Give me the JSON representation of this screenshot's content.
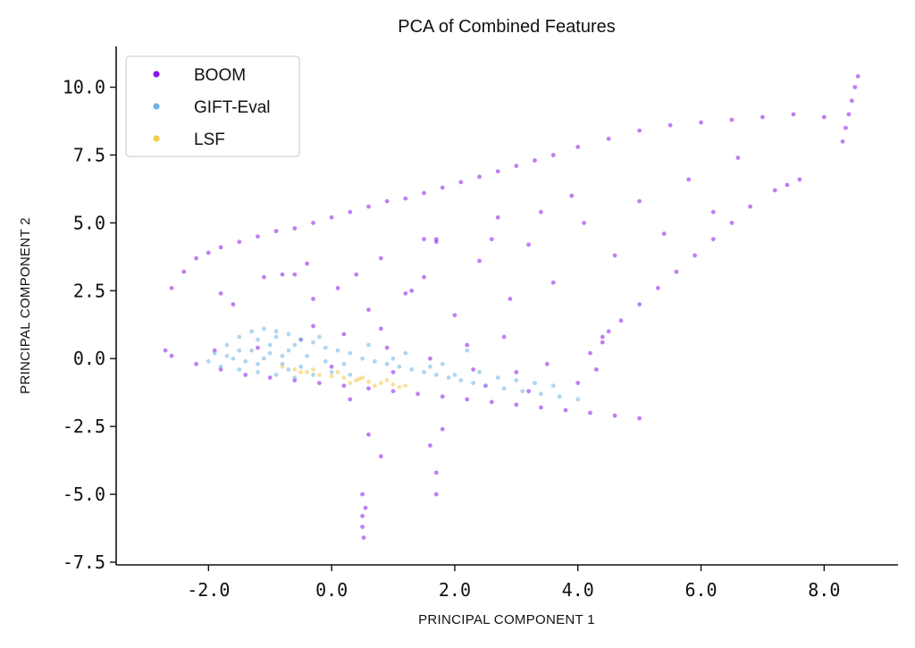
{
  "chart_data": {
    "type": "scatter",
    "title": "PCA of Combined Features",
    "xlabel": "PRINCIPAL COMPONENT 1",
    "ylabel": "PRINCIPAL COMPONENT 2",
    "xlim": [
      -3.5,
      9.2
    ],
    "ylim": [
      -7.6,
      11.5
    ],
    "xticks": [
      -2.0,
      0.0,
      2.0,
      4.0,
      6.0,
      8.0
    ],
    "xtick_labels": [
      "-2.0",
      "0.0",
      "2.0",
      "4.0",
      "6.0",
      "8.0"
    ],
    "yticks": [
      10.0,
      7.5,
      5.0,
      2.5,
      0.0,
      -2.5,
      -5.0,
      -7.5
    ],
    "ytick_labels": [
      "10.0",
      "7.5",
      "5.0",
      "2.5",
      "0.0",
      "-2.5",
      "-5.0",
      "-7.5"
    ],
    "grid": false,
    "legend_position": "top-left",
    "series": [
      {
        "name": "BOOM",
        "color": "#8a16e8",
        "points": [
          [
            -2.7,
            0.3
          ],
          [
            -2.6,
            2.6
          ],
          [
            -2.4,
            3.2
          ],
          [
            -2.2,
            3.7
          ],
          [
            -2.0,
            3.9
          ],
          [
            -1.8,
            4.1
          ],
          [
            -1.5,
            4.3
          ],
          [
            -1.2,
            4.5
          ],
          [
            -0.9,
            4.7
          ],
          [
            -0.6,
            4.8
          ],
          [
            -0.3,
            5.0
          ],
          [
            0.0,
            5.2
          ],
          [
            0.3,
            5.4
          ],
          [
            0.6,
            5.6
          ],
          [
            0.9,
            5.8
          ],
          [
            1.2,
            5.9
          ],
          [
            1.5,
            6.1
          ],
          [
            1.8,
            6.3
          ],
          [
            2.1,
            6.5
          ],
          [
            2.4,
            6.7
          ],
          [
            2.7,
            6.9
          ],
          [
            3.0,
            7.1
          ],
          [
            3.3,
            7.3
          ],
          [
            3.6,
            7.5
          ],
          [
            4.0,
            7.8
          ],
          [
            4.5,
            8.1
          ],
          [
            5.0,
            8.4
          ],
          [
            5.5,
            8.6
          ],
          [
            6.0,
            8.7
          ],
          [
            6.5,
            8.8
          ],
          [
            7.0,
            8.9
          ],
          [
            7.5,
            9.0
          ],
          [
            8.0,
            8.9
          ],
          [
            8.3,
            8.0
          ],
          [
            8.35,
            8.5
          ],
          [
            8.4,
            9.0
          ],
          [
            8.45,
            9.5
          ],
          [
            8.5,
            10.0
          ],
          [
            8.55,
            10.4
          ],
          [
            7.6,
            6.6
          ],
          [
            7.4,
            6.4
          ],
          [
            7.2,
            6.2
          ],
          [
            6.8,
            5.6
          ],
          [
            6.5,
            5.0
          ],
          [
            6.2,
            4.4
          ],
          [
            5.9,
            3.8
          ],
          [
            5.6,
            3.2
          ],
          [
            5.3,
            2.6
          ],
          [
            5.0,
            2.0
          ],
          [
            4.7,
            1.4
          ],
          [
            4.4,
            0.8
          ],
          [
            4.2,
            0.2
          ],
          [
            4.3,
            -0.4
          ],
          [
            4.0,
            -0.9
          ],
          [
            5.0,
            -2.2
          ],
          [
            4.6,
            -2.1
          ],
          [
            4.2,
            -2.0
          ],
          [
            3.8,
            -1.9
          ],
          [
            3.4,
            -1.8
          ],
          [
            3.0,
            -1.7
          ],
          [
            2.6,
            -1.6
          ],
          [
            2.2,
            -1.5
          ],
          [
            1.8,
            -1.4
          ],
          [
            1.4,
            -1.3
          ],
          [
            1.0,
            -1.2
          ],
          [
            0.6,
            -1.1
          ],
          [
            0.2,
            -1.0
          ],
          [
            -0.2,
            -0.9
          ],
          [
            -0.6,
            -0.8
          ],
          [
            -1.0,
            -0.7
          ],
          [
            -1.4,
            -0.6
          ],
          [
            -1.8,
            -0.4
          ],
          [
            -2.2,
            -0.2
          ],
          [
            -2.6,
            0.1
          ],
          [
            -1.9,
            0.3
          ],
          [
            -1.2,
            0.4
          ],
          [
            -0.5,
            0.7
          ],
          [
            0.2,
            0.9
          ],
          [
            0.9,
            0.4
          ],
          [
            1.6,
            0.0
          ],
          [
            2.3,
            -0.4
          ],
          [
            3.0,
            -0.5
          ],
          [
            3.5,
            -0.2
          ],
          [
            2.8,
            0.8
          ],
          [
            2.0,
            1.6
          ],
          [
            1.2,
            2.4
          ],
          [
            0.4,
            3.1
          ],
          [
            -0.4,
            3.5
          ],
          [
            -1.1,
            3.0
          ],
          [
            -1.8,
            2.4
          ],
          [
            -0.3,
            2.2
          ],
          [
            0.6,
            1.8
          ],
          [
            1.5,
            3.0
          ],
          [
            2.4,
            3.6
          ],
          [
            3.2,
            4.2
          ],
          [
            4.1,
            5.0
          ],
          [
            5.0,
            5.8
          ],
          [
            5.8,
            6.6
          ],
          [
            6.6,
            7.4
          ],
          [
            3.6,
            2.8
          ],
          [
            2.9,
            2.2
          ],
          [
            4.6,
            3.8
          ],
          [
            5.4,
            4.6
          ],
          [
            6.2,
            5.4
          ],
          [
            3.9,
            6.0
          ],
          [
            2.7,
            5.2
          ],
          [
            1.7,
            4.4
          ],
          [
            0.8,
            3.7
          ],
          [
            1.5,
            4.4
          ],
          [
            1.7,
            4.3
          ],
          [
            0.3,
            -1.5
          ],
          [
            0.6,
            -2.8
          ],
          [
            0.8,
            -3.6
          ],
          [
            0.5,
            -5.0
          ],
          [
            0.5,
            -6.2
          ],
          [
            0.52,
            -6.6
          ],
          [
            1.6,
            -3.2
          ],
          [
            1.7,
            -4.2
          ],
          [
            1.7,
            -5.0
          ],
          [
            1.8,
            -2.6
          ],
          [
            0.55,
            -5.5
          ],
          [
            0.5,
            -5.8
          ],
          [
            1.3,
            2.5
          ],
          [
            -1.6,
            2.0
          ],
          [
            0.0,
            -0.3
          ],
          [
            1.0,
            -0.5
          ],
          [
            2.5,
            -1.0
          ],
          [
            3.2,
            -1.2
          ],
          [
            -0.8,
            3.1
          ],
          [
            -0.6,
            3.1
          ],
          [
            2.2,
            0.5
          ],
          [
            4.5,
            1.0
          ],
          [
            4.4,
            0.6
          ],
          [
            -0.3,
            1.2
          ],
          [
            0.1,
            2.6
          ],
          [
            0.8,
            1.1
          ],
          [
            2.6,
            4.4
          ],
          [
            3.4,
            5.4
          ]
        ]
      },
      {
        "name": "GIFT-Eval",
        "color": "#6fb4e3",
        "points": [
          [
            -1.9,
            0.2
          ],
          [
            -1.7,
            0.5
          ],
          [
            -1.5,
            0.8
          ],
          [
            -1.3,
            1.0
          ],
          [
            -1.1,
            1.1
          ],
          [
            -0.9,
            1.0
          ],
          [
            -0.7,
            0.9
          ],
          [
            -0.5,
            0.7
          ],
          [
            -0.3,
            0.6
          ],
          [
            -0.1,
            0.4
          ],
          [
            0.1,
            0.3
          ],
          [
            0.3,
            0.2
          ],
          [
            0.5,
            0.0
          ],
          [
            0.7,
            -0.1
          ],
          [
            0.9,
            -0.2
          ],
          [
            1.1,
            -0.3
          ],
          [
            1.3,
            -0.4
          ],
          [
            1.5,
            -0.5
          ],
          [
            1.7,
            -0.6
          ],
          [
            1.9,
            -0.7
          ],
          [
            2.1,
            -0.8
          ],
          [
            2.3,
            -0.9
          ],
          [
            2.5,
            -1.0
          ],
          [
            2.8,
            -1.1
          ],
          [
            3.1,
            -1.2
          ],
          [
            3.4,
            -1.3
          ],
          [
            3.7,
            -1.4
          ],
          [
            4.0,
            -1.5
          ],
          [
            -1.8,
            -0.3
          ],
          [
            -1.5,
            -0.4
          ],
          [
            -1.2,
            -0.5
          ],
          [
            -0.9,
            -0.6
          ],
          [
            -0.6,
            -0.7
          ],
          [
            -0.3,
            -0.6
          ],
          [
            0.0,
            -0.5
          ],
          [
            0.3,
            -0.6
          ],
          [
            -1.6,
            0.0
          ],
          [
            -1.3,
            0.3
          ],
          [
            -1.0,
            0.5
          ],
          [
            -0.7,
            0.3
          ],
          [
            -0.4,
            0.1
          ],
          [
            -0.1,
            -0.1
          ],
          [
            0.2,
            -0.2
          ],
          [
            -1.4,
            -0.1
          ],
          [
            -1.1,
            0.0
          ],
          [
            -0.8,
            -0.2
          ],
          [
            -0.5,
            -0.3
          ],
          [
            -1.2,
            0.7
          ],
          [
            -0.9,
            0.8
          ],
          [
            -0.6,
            0.5
          ],
          [
            1.2,
            0.2
          ],
          [
            1.8,
            -0.2
          ],
          [
            2.4,
            -0.5
          ],
          [
            3.0,
            -0.8
          ],
          [
            3.6,
            -1.0
          ],
          [
            2.2,
            0.3
          ],
          [
            -2.0,
            -0.1
          ],
          [
            -1.7,
            0.1
          ],
          [
            -0.2,
            0.8
          ],
          [
            0.6,
            0.5
          ],
          [
            1.0,
            0.0
          ],
          [
            1.6,
            -0.3
          ],
          [
            2.0,
            -0.6
          ],
          [
            2.7,
            -0.7
          ],
          [
            3.3,
            -0.9
          ],
          [
            -1.0,
            0.2
          ],
          [
            -0.8,
            0.1
          ],
          [
            -1.2,
            -0.2
          ],
          [
            -1.5,
            0.3
          ],
          [
            -0.7,
            -0.4
          ]
        ]
      },
      {
        "name": "LSF",
        "color": "#f3c94f",
        "points": [
          [
            -0.8,
            -0.3
          ],
          [
            -0.6,
            -0.4
          ],
          [
            -0.4,
            -0.5
          ],
          [
            -0.2,
            -0.6
          ],
          [
            0.0,
            -0.65
          ],
          [
            0.2,
            -0.7
          ],
          [
            0.4,
            -0.8
          ],
          [
            0.6,
            -0.85
          ],
          [
            0.8,
            -0.9
          ],
          [
            1.0,
            -0.95
          ],
          [
            1.2,
            -1.0
          ],
          [
            -0.3,
            -0.4
          ],
          [
            0.1,
            -0.5
          ],
          [
            0.5,
            -0.7
          ],
          [
            0.9,
            -0.8
          ],
          [
            0.3,
            -0.9
          ],
          [
            0.7,
            -1.0
          ],
          [
            -0.5,
            -0.5
          ],
          [
            1.1,
            -1.05
          ],
          [
            0.45,
            -0.75
          ]
        ]
      }
    ]
  }
}
